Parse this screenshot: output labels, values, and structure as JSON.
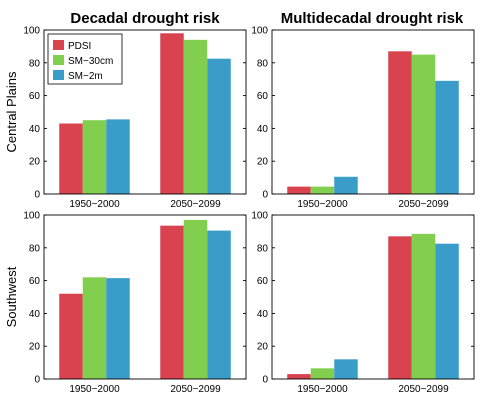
{
  "figure": {
    "column_titles": [
      "Decadal drought risk",
      "Multidecadal drought risk"
    ],
    "row_titles": [
      "Central Plains",
      "Southwest"
    ]
  },
  "legend": {
    "placement": "top-left",
    "entries": [
      {
        "name": "PDSI",
        "color": "#d9434f"
      },
      {
        "name": "SM−30cm",
        "color": "#82ce4e"
      },
      {
        "name": "SM−2m",
        "color": "#3a9cc8"
      }
    ]
  },
  "chart_data": [
    {
      "type": "bar",
      "panel": "Central Plains / Decadal drought risk",
      "categories": [
        "1950−2000",
        "2050−2099"
      ],
      "series": [
        {
          "name": "PDSI",
          "values": [
            43,
            98
          ]
        },
        {
          "name": "SM−30cm",
          "values": [
            45,
            94
          ]
        },
        {
          "name": "SM−2m",
          "values": [
            45.5,
            82.5
          ]
        }
      ],
      "ylim": [
        0,
        100
      ],
      "yticks": [
        0,
        20,
        40,
        60,
        80,
        100
      ],
      "grid": false
    },
    {
      "type": "bar",
      "panel": "Central Plains / Multidecadal drought risk",
      "categories": [
        "1950−2000",
        "2050−2099"
      ],
      "series": [
        {
          "name": "PDSI",
          "values": [
            4.5,
            87
          ]
        },
        {
          "name": "SM−30cm",
          "values": [
            4.5,
            85
          ]
        },
        {
          "name": "SM−2m",
          "values": [
            10.5,
            69
          ]
        }
      ],
      "ylim": [
        0,
        100
      ],
      "yticks": [
        0,
        20,
        40,
        60,
        80,
        100
      ],
      "grid": false
    },
    {
      "type": "bar",
      "panel": "Southwest / Decadal drought risk",
      "categories": [
        "1950−2000",
        "2050−2099"
      ],
      "series": [
        {
          "name": "PDSI",
          "values": [
            52,
            93.5
          ]
        },
        {
          "name": "SM−30cm",
          "values": [
            62,
            97
          ]
        },
        {
          "name": "SM−2m",
          "values": [
            61.5,
            90.5
          ]
        }
      ],
      "ylim": [
        0,
        100
      ],
      "yticks": [
        0,
        20,
        40,
        60,
        80,
        100
      ],
      "grid": false
    },
    {
      "type": "bar",
      "panel": "Southwest / Multidecadal drought risk",
      "categories": [
        "1950−2000",
        "2050−2099"
      ],
      "series": [
        {
          "name": "PDSI",
          "values": [
            3,
            87
          ]
        },
        {
          "name": "SM−30cm",
          "values": [
            6.5,
            88.5
          ]
        },
        {
          "name": "SM−2m",
          "values": [
            12,
            82.5
          ]
        }
      ],
      "ylim": [
        0,
        100
      ],
      "yticks": [
        0,
        20,
        40,
        60,
        80,
        100
      ],
      "grid": false
    }
  ]
}
